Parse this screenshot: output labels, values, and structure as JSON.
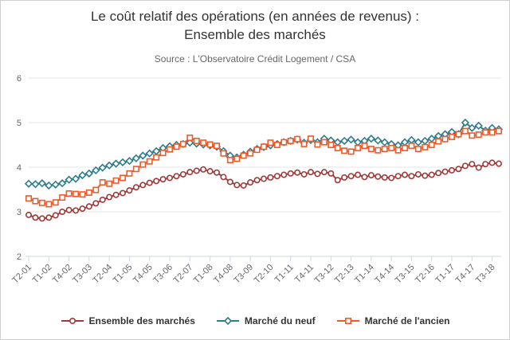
{
  "header": {
    "title_line1": "Le coût relatif des opérations (en années de revenus) :",
    "title_line2": "Ensemble des marchés",
    "subtitle": "Source : L'Observatoire Crédit Logement / CSA"
  },
  "chart_data": {
    "type": "line",
    "title": "Le coût relatif des opérations (en années de revenus) : Ensemble des marchés",
    "subtitle": "Source : L'Observatoire Crédit Logement / CSA",
    "ylabel": "",
    "xlabel": "",
    "ylim": [
      2,
      6
    ],
    "yticks": [
      2,
      3,
      4,
      5,
      6
    ],
    "grid": true,
    "legend_position": "bottom",
    "axis_line_color": "#ccd6eb",
    "grid_color": "#e6e6e6",
    "label_color": "#666666",
    "x_categories": [
      "T2-01",
      "T3-01",
      "T4-01",
      "T1-02",
      "T2-02",
      "T3-02",
      "T4-02",
      "T1-03",
      "T2-03",
      "T3-03",
      "T4-03",
      "T1-04",
      "T2-04",
      "T3-04",
      "T4-04",
      "T1-05",
      "T2-05",
      "T3-05",
      "T4-05",
      "T1-06",
      "T2-06",
      "T3-06",
      "T4-06",
      "T1-07",
      "T2-07",
      "T3-07",
      "T4-07",
      "T1-08",
      "T2-08",
      "T3-08",
      "T4-08",
      "T1-09",
      "T2-09",
      "T3-09",
      "T4-09",
      "T1-10",
      "T2-10",
      "T3-10",
      "T4-10",
      "T1-11",
      "T2-11",
      "T3-11",
      "T4-11",
      "T1-12",
      "T2-12",
      "T3-12",
      "T4-12",
      "T1-13",
      "T2-13",
      "T3-13",
      "T4-13",
      "T1-14",
      "T2-14",
      "T3-14",
      "T4-14",
      "T1-15",
      "T2-15",
      "T3-15",
      "T4-15",
      "T1-16",
      "T2-16",
      "T3-16",
      "T4-16",
      "T1-17",
      "T2-17",
      "T3-17",
      "T4-17",
      "T1-18",
      "T2-18",
      "T3-18",
      "T4-18"
    ],
    "x_tick_labels": [
      "T2-01",
      "T1-02",
      "T4-02",
      "T3-03",
      "T2-04",
      "T1-05",
      "T4-05",
      "T3-06",
      "T2-07",
      "T1-08",
      "T4-08",
      "T3-09",
      "T2-10",
      "T1-11",
      "T4-11",
      "T3-12",
      "T2-13",
      "T1-14",
      "T4-14",
      "T3-15",
      "T2-16",
      "T1-17",
      "T4-17",
      "T3-18"
    ],
    "series": [
      {
        "name": "Ensemble des marchés",
        "color": "#9E3A3A",
        "marker": "circle",
        "values": [
          2.93,
          2.87,
          2.85,
          2.87,
          2.92,
          3.0,
          3.04,
          3.03,
          3.07,
          3.12,
          3.19,
          3.27,
          3.33,
          3.38,
          3.42,
          3.48,
          3.55,
          3.6,
          3.65,
          3.69,
          3.73,
          3.76,
          3.8,
          3.84,
          3.89,
          3.92,
          3.95,
          3.91,
          3.88,
          3.78,
          3.67,
          3.6,
          3.59,
          3.66,
          3.71,
          3.74,
          3.77,
          3.8,
          3.83,
          3.86,
          3.88,
          3.84,
          3.89,
          3.85,
          3.89,
          3.86,
          3.71,
          3.77,
          3.8,
          3.83,
          3.78,
          3.82,
          3.79,
          3.77,
          3.76,
          3.8,
          3.83,
          3.8,
          3.84,
          3.81,
          3.83,
          3.87,
          3.9,
          3.93,
          3.96,
          4.03,
          4.07,
          3.99,
          4.07,
          4.1,
          4.08
        ]
      },
      {
        "name": "Marché du neuf",
        "color": "#2E7D8C",
        "marker": "diamond",
        "values": [
          3.63,
          3.62,
          3.64,
          3.59,
          3.61,
          3.64,
          3.72,
          3.74,
          3.82,
          3.86,
          3.93,
          3.99,
          4.04,
          4.08,
          4.11,
          4.14,
          4.2,
          4.26,
          4.31,
          4.36,
          4.43,
          4.47,
          4.5,
          4.52,
          4.55,
          4.53,
          4.51,
          4.49,
          4.46,
          4.36,
          4.26,
          4.22,
          4.28,
          4.35,
          4.41,
          4.45,
          4.49,
          4.52,
          4.56,
          4.59,
          4.62,
          4.55,
          4.61,
          4.56,
          4.64,
          4.6,
          4.56,
          4.59,
          4.62,
          4.56,
          4.59,
          4.64,
          4.6,
          4.56,
          4.52,
          4.49,
          4.56,
          4.61,
          4.56,
          4.59,
          4.64,
          4.7,
          4.74,
          4.79,
          4.74,
          5.0,
          4.88,
          4.93,
          4.82,
          4.88,
          4.85
        ]
      },
      {
        "name": "Marché de l'ancien",
        "color": "#F05A28",
        "marker": "square",
        "values": [
          3.3,
          3.24,
          3.2,
          3.17,
          3.21,
          3.32,
          3.41,
          3.4,
          3.39,
          3.43,
          3.49,
          3.66,
          3.63,
          3.7,
          3.76,
          3.86,
          3.96,
          4.06,
          4.13,
          4.22,
          4.32,
          4.4,
          4.46,
          4.52,
          4.66,
          4.59,
          4.55,
          4.51,
          4.48,
          4.31,
          4.16,
          4.19,
          4.26,
          4.31,
          4.39,
          4.46,
          4.55,
          4.5,
          4.56,
          4.59,
          4.63,
          4.52,
          4.64,
          4.51,
          4.56,
          4.5,
          4.43,
          4.37,
          4.35,
          4.43,
          4.48,
          4.41,
          4.38,
          4.41,
          4.43,
          4.38,
          4.43,
          4.48,
          4.41,
          4.45,
          4.5,
          4.58,
          4.63,
          4.68,
          4.74,
          4.81,
          4.71,
          4.73,
          4.78,
          4.78,
          4.81
        ]
      }
    ]
  }
}
